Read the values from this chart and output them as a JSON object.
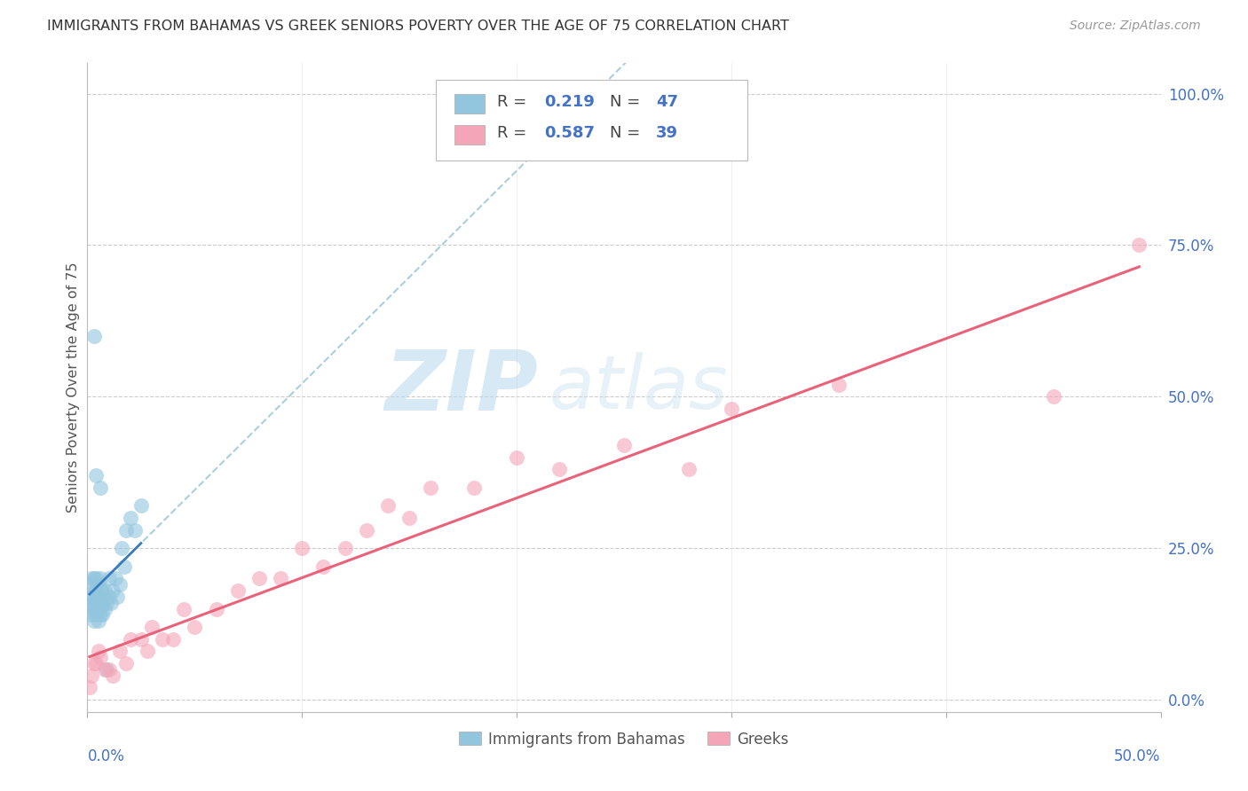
{
  "title": "IMMIGRANTS FROM BAHAMAS VS GREEK SENIORS POVERTY OVER THE AGE OF 75 CORRELATION CHART",
  "source": "Source: ZipAtlas.com",
  "ylabel": "Seniors Poverty Over the Age of 75",
  "ytick_labels": [
    "0.0%",
    "25.0%",
    "50.0%",
    "75.0%",
    "100.0%"
  ],
  "ytick_values": [
    0.0,
    0.25,
    0.5,
    0.75,
    1.0
  ],
  "xlim": [
    0.0,
    0.5
  ],
  "ylim": [
    -0.02,
    1.05
  ],
  "watermark_text": "ZIP",
  "watermark_text2": "atlas",
  "R_blue": 0.219,
  "N_blue": 47,
  "R_pink": 0.587,
  "N_pink": 39,
  "legend_label_blue": "Immigrants from Bahamas",
  "legend_label_pink": "Greeks",
  "blue_color": "#92c5de",
  "pink_color": "#f4a6b8",
  "blue_line_color": "#3a7bbf",
  "pink_line_color": "#e8637a",
  "dashed_color": "#a8cfe0",
  "bahamas_x": [
    0.001,
    0.001,
    0.001,
    0.002,
    0.002,
    0.002,
    0.002,
    0.003,
    0.003,
    0.003,
    0.003,
    0.003,
    0.004,
    0.004,
    0.004,
    0.004,
    0.005,
    0.005,
    0.005,
    0.005,
    0.006,
    0.006,
    0.006,
    0.006,
    0.007,
    0.007,
    0.007,
    0.008,
    0.008,
    0.009,
    0.01,
    0.01,
    0.011,
    0.012,
    0.013,
    0.014,
    0.015,
    0.016,
    0.017,
    0.018,
    0.02,
    0.022,
    0.025,
    0.003,
    0.004,
    0.006,
    0.009
  ],
  "bahamas_y": [
    0.15,
    0.17,
    0.19,
    0.14,
    0.16,
    0.17,
    0.2,
    0.13,
    0.15,
    0.17,
    0.18,
    0.2,
    0.14,
    0.16,
    0.18,
    0.2,
    0.13,
    0.15,
    0.17,
    0.19,
    0.14,
    0.16,
    0.18,
    0.2,
    0.14,
    0.16,
    0.18,
    0.15,
    0.18,
    0.16,
    0.17,
    0.2,
    0.16,
    0.18,
    0.2,
    0.17,
    0.19,
    0.25,
    0.22,
    0.28,
    0.3,
    0.28,
    0.32,
    0.6,
    0.37,
    0.35,
    0.05
  ],
  "greeks_x": [
    0.001,
    0.002,
    0.003,
    0.004,
    0.005,
    0.006,
    0.008,
    0.01,
    0.012,
    0.015,
    0.018,
    0.02,
    0.025,
    0.028,
    0.03,
    0.035,
    0.04,
    0.045,
    0.05,
    0.06,
    0.07,
    0.08,
    0.09,
    0.1,
    0.11,
    0.12,
    0.13,
    0.14,
    0.15,
    0.16,
    0.18,
    0.2,
    0.22,
    0.25,
    0.28,
    0.3,
    0.35,
    0.45,
    0.49
  ],
  "greeks_y": [
    0.02,
    0.04,
    0.06,
    0.06,
    0.08,
    0.07,
    0.05,
    0.05,
    0.04,
    0.08,
    0.06,
    0.1,
    0.1,
    0.08,
    0.12,
    0.1,
    0.1,
    0.15,
    0.12,
    0.15,
    0.18,
    0.2,
    0.2,
    0.25,
    0.22,
    0.25,
    0.28,
    0.32,
    0.3,
    0.35,
    0.35,
    0.4,
    0.38,
    0.42,
    0.38,
    0.48,
    0.52,
    0.5,
    0.75
  ]
}
